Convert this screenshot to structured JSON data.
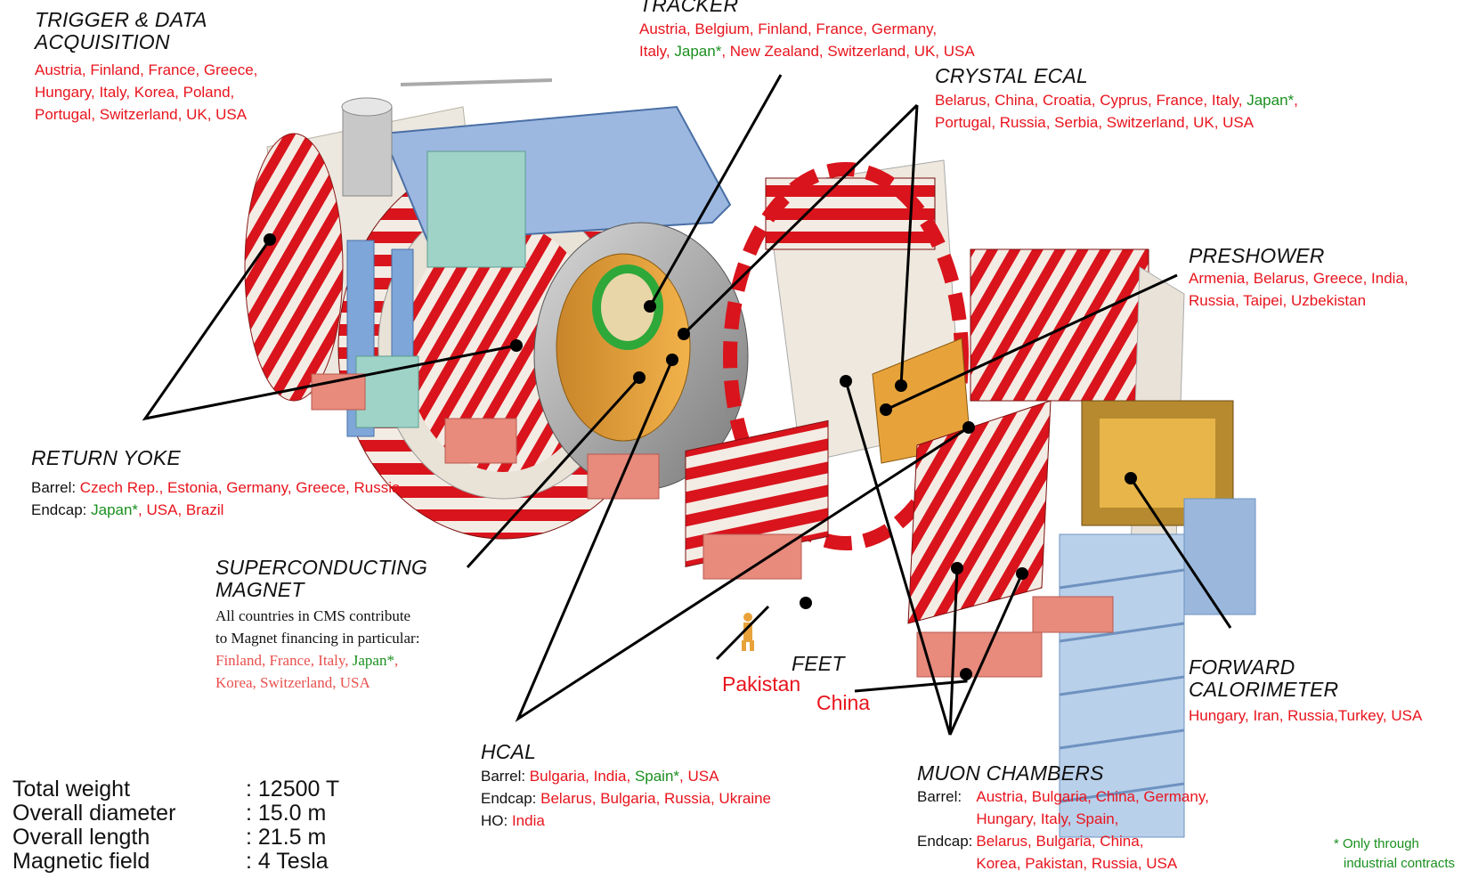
{
  "trigger": {
    "title1": "TRIGGER & DATA",
    "title2": "ACQUISITION",
    "line1": "Austria, Finland, France, Greece,",
    "line2": "Hungary, Italy, Korea, Poland,",
    "line3": "Portugal, Switzerland, UK, USA"
  },
  "tracker": {
    "title": "TRACKER",
    "line1": "Austria, Belgium, Finland, France, Germany,",
    "line2_a": "Italy, ",
    "line2_b": "Japan*",
    "line2_c": ", New Zealand, Switzerland, UK, USA"
  },
  "ecal": {
    "title": "CRYSTAL ECAL",
    "line1_a": "Belarus, China, Croatia, Cyprus, France, Italy, ",
    "line1_b": "Japan*",
    "line1_c": ",",
    "line2": "Portugal, Russia, Serbia, Switzerland, UK, USA"
  },
  "preshower": {
    "title": "PRESHOWER",
    "line1": "Armenia, Belarus, Greece, India,",
    "line2": "Russia, Taipei, Uzbekistan"
  },
  "return_yoke": {
    "title": "RETURN YOKE",
    "barrel_key": "Barrel: ",
    "barrel_val": "Czech Rep., Estonia, Germany, Greece, Russia",
    "endcap_key": "Endcap: ",
    "endcap_jp": "Japan*",
    "endcap_val": ", USA, Brazil"
  },
  "magnet": {
    "title1": "SUPERCONDUCTING",
    "title2": "MAGNET",
    "line1": "All countries in CMS contribute",
    "line2": "to Magnet financing in particular:",
    "line3_a": "Finland, France, Italy, ",
    "line3_b": "Japan*",
    "line3_c": ",",
    "line4": "Korea, Switzerland, USA"
  },
  "feet": {
    "title": "FEET",
    "country1": "Pakistan",
    "country2": "China"
  },
  "forward": {
    "title1": "FORWARD",
    "title2": "CALORIMETER",
    "line1": "Hungary, Iran, Russia,Turkey, USA"
  },
  "hcal": {
    "title": "HCAL",
    "barrel_key": "Barrel: ",
    "barrel_a": "Bulgaria, India, ",
    "barrel_b": "Spain*",
    "barrel_c": ", USA",
    "endcap_key": "Endcap: ",
    "endcap_val": "Belarus, Bulgaria, Russia, Ukraine",
    "ho_key": "HO: ",
    "ho_val": "India"
  },
  "muon": {
    "title": "MUON CHAMBERS",
    "barrel_key": "Barrel:",
    "barrel_l1": "Austria, Bulgaria, China, Germany,",
    "barrel_l2": "Hungary, Italy, Spain,",
    "endcap_key": "Endcap:",
    "endcap_l1": "Belarus, Bulgaria, China,",
    "endcap_l2": "Korea, Pakistan, Russia, USA"
  },
  "stats": [
    {
      "label": "Total weight",
      "value": ": 12500 T"
    },
    {
      "label": "Overall diameter",
      "value": ": 15.0 m"
    },
    {
      "label": "Overall length",
      "value": ": 21.5 m"
    },
    {
      "label": "Magnetic field",
      "value": ": 4 Tesla"
    }
  ],
  "footnote": {
    "line1": "* Only through",
    "line2": "industrial contracts"
  },
  "colors": {
    "country_red": "#e8141d",
    "japan_green": "#1a8f1f",
    "yoke_red": "#d9141c",
    "structure_blue": "#7ea6d9",
    "feet_pink": "#e88a7c",
    "calorimeter_orange": "#e8a23a"
  }
}
